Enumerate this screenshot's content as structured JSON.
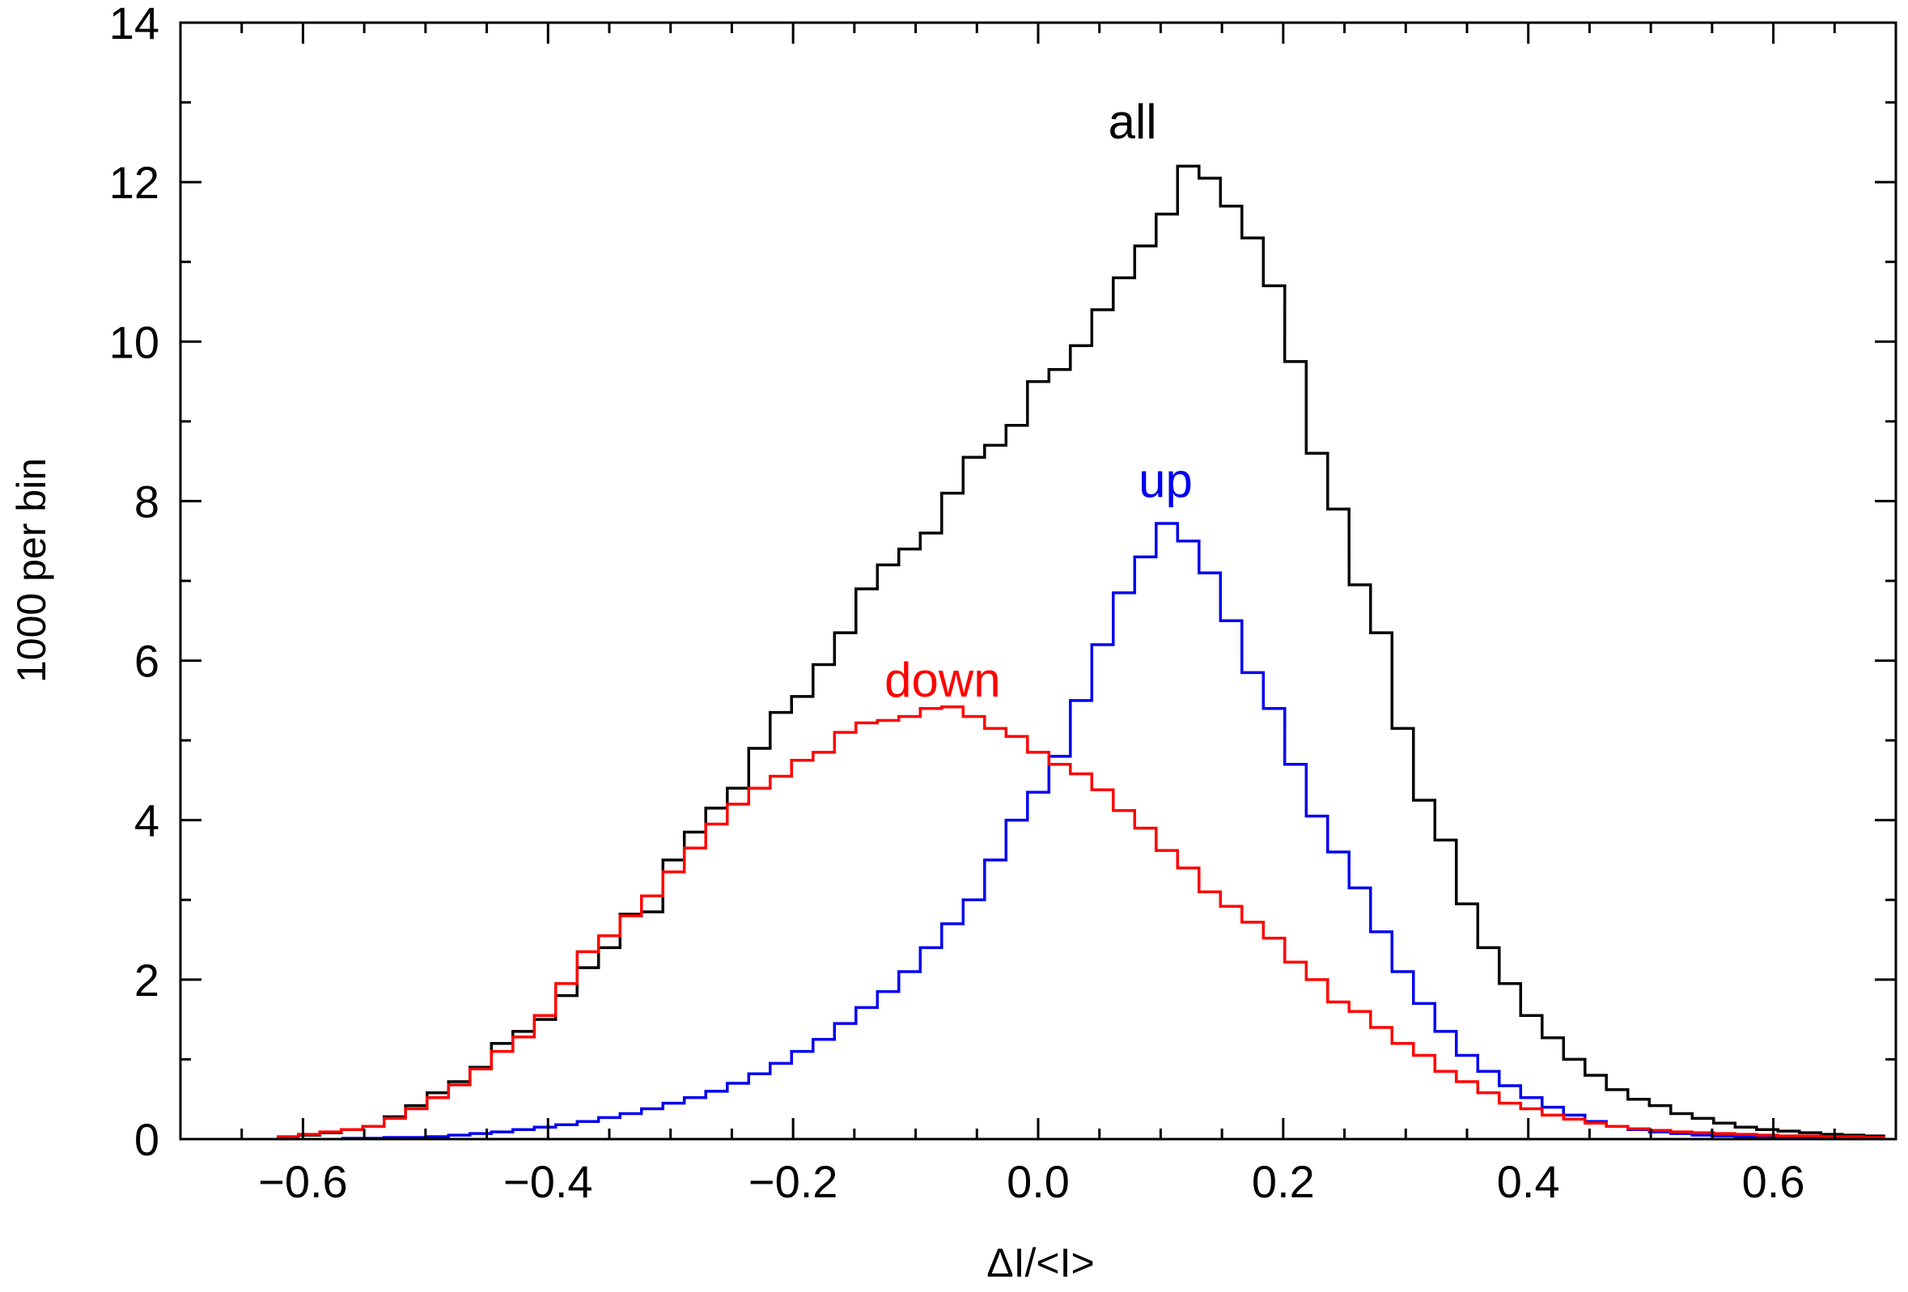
{
  "chart_data": {
    "type": "line",
    "title": "",
    "xlabel": "ΔI/<I>",
    "ylabel": "1000 per bin",
    "xlim": [
      -0.7,
      0.7
    ],
    "ylim": [
      0,
      14
    ],
    "x_ticks": [
      -0.6,
      -0.4,
      -0.2,
      0.0,
      0.2,
      0.4,
      0.6
    ],
    "x_tick_labels": [
      "−0.6",
      "−0.4",
      "−0.2",
      "0.0",
      "0.2",
      "0.4",
      "0.6"
    ],
    "y_ticks": [
      0,
      2,
      4,
      6,
      8,
      10,
      12,
      14
    ],
    "y_tick_labels": [
      "0",
      "2",
      "4",
      "6",
      "8",
      "10",
      "12",
      "14"
    ],
    "grid": false,
    "bin_width": 0.0175,
    "series": [
      {
        "name": "all",
        "color": "#000000",
        "label_anchor": [
          0.077,
          12.55
        ],
        "x": [
          -0.6125,
          -0.595,
          -0.5775,
          -0.56,
          -0.5425,
          -0.525,
          -0.5075,
          -0.49,
          -0.4725,
          -0.455,
          -0.4375,
          -0.42,
          -0.4025,
          -0.385,
          -0.3675,
          -0.35,
          -0.3325,
          -0.315,
          -0.2975,
          -0.28,
          -0.2625,
          -0.245,
          -0.2275,
          -0.21,
          -0.1925,
          -0.175,
          -0.1575,
          -0.14,
          -0.1225,
          -0.105,
          -0.0875,
          -0.07,
          -0.0525,
          -0.035,
          -0.0175,
          0.0,
          0.0175,
          0.035,
          0.0525,
          0.07,
          0.0875,
          0.105,
          0.1225,
          0.14,
          0.1575,
          0.175,
          0.1925,
          0.21,
          0.2275,
          0.245,
          0.2625,
          0.28,
          0.2975,
          0.315,
          0.3325,
          0.35,
          0.3675,
          0.385,
          0.4025,
          0.42,
          0.4375,
          0.455,
          0.4725,
          0.49,
          0.5075,
          0.525,
          0.5425,
          0.56,
          0.5775,
          0.595,
          0.6125,
          0.63,
          0.6475,
          0.665,
          0.6825
        ],
        "y": [
          0.02,
          0.05,
          0.08,
          0.12,
          0.16,
          0.28,
          0.42,
          0.58,
          0.72,
          0.9,
          1.2,
          1.35,
          1.5,
          1.8,
          2.15,
          2.4,
          2.82,
          2.85,
          3.5,
          3.85,
          4.15,
          4.4,
          4.9,
          5.35,
          5.55,
          5.95,
          6.35,
          6.9,
          7.2,
          7.4,
          7.6,
          8.1,
          8.55,
          8.7,
          8.95,
          9.5,
          9.65,
          9.95,
          10.4,
          10.8,
          11.2,
          11.6,
          12.2,
          12.05,
          11.7,
          11.3,
          10.7,
          9.75,
          8.6,
          7.9,
          6.95,
          6.35,
          5.15,
          4.25,
          3.75,
          2.95,
          2.4,
          1.95,
          1.55,
          1.27,
          1.0,
          0.8,
          0.62,
          0.5,
          0.42,
          0.32,
          0.26,
          0.2,
          0.15,
          0.12,
          0.1,
          0.08,
          0.06,
          0.05,
          0.04
        ]
      },
      {
        "name": "up",
        "color": "#0000ee",
        "label_anchor": [
          0.104,
          8.05
        ],
        "x": [
          -0.56,
          -0.5425,
          -0.525,
          -0.5075,
          -0.49,
          -0.4725,
          -0.455,
          -0.4375,
          -0.42,
          -0.4025,
          -0.385,
          -0.3675,
          -0.35,
          -0.3325,
          -0.315,
          -0.2975,
          -0.28,
          -0.2625,
          -0.245,
          -0.2275,
          -0.21,
          -0.1925,
          -0.175,
          -0.1575,
          -0.14,
          -0.1225,
          -0.105,
          -0.0875,
          -0.07,
          -0.0525,
          -0.035,
          -0.0175,
          0.0,
          0.0175,
          0.035,
          0.0525,
          0.07,
          0.0875,
          0.105,
          0.1225,
          0.14,
          0.1575,
          0.175,
          0.1925,
          0.21,
          0.2275,
          0.245,
          0.2625,
          0.28,
          0.2975,
          0.315,
          0.3325,
          0.35,
          0.3675,
          0.385,
          0.4025,
          0.42,
          0.4375,
          0.455,
          0.4725,
          0.49,
          0.5075,
          0.525,
          0.5425,
          0.56,
          0.5775,
          0.595,
          0.6125,
          0.63,
          0.6475,
          0.665,
          0.6825
        ],
        "y": [
          0.01,
          0.01,
          0.02,
          0.02,
          0.03,
          0.05,
          0.07,
          0.09,
          0.12,
          0.15,
          0.18,
          0.22,
          0.27,
          0.32,
          0.38,
          0.45,
          0.52,
          0.6,
          0.7,
          0.82,
          0.95,
          1.1,
          1.25,
          1.45,
          1.65,
          1.85,
          2.1,
          2.4,
          2.7,
          3.0,
          3.5,
          4.0,
          4.35,
          4.8,
          5.5,
          6.2,
          6.85,
          7.3,
          7.72,
          7.5,
          7.1,
          6.5,
          5.85,
          5.4,
          4.7,
          4.05,
          3.6,
          3.15,
          2.6,
          2.1,
          1.7,
          1.35,
          1.05,
          0.85,
          0.67,
          0.52,
          0.4,
          0.3,
          0.22,
          0.16,
          0.12,
          0.09,
          0.07,
          0.05,
          0.04,
          0.03,
          0.03,
          0.02,
          0.02,
          0.01,
          0.01,
          0.01
        ]
      },
      {
        "name": "down",
        "color": "#ff0000",
        "label_anchor": [
          -0.078,
          5.55
        ],
        "x": [
          -0.6125,
          -0.595,
          -0.5775,
          -0.56,
          -0.5425,
          -0.525,
          -0.5075,
          -0.49,
          -0.4725,
          -0.455,
          -0.4375,
          -0.42,
          -0.4025,
          -0.385,
          -0.3675,
          -0.35,
          -0.3325,
          -0.315,
          -0.2975,
          -0.28,
          -0.2625,
          -0.245,
          -0.2275,
          -0.21,
          -0.1925,
          -0.175,
          -0.1575,
          -0.14,
          -0.1225,
          -0.105,
          -0.0875,
          -0.07,
          -0.0525,
          -0.035,
          -0.0175,
          0.0,
          0.0175,
          0.035,
          0.0525,
          0.07,
          0.0875,
          0.105,
          0.1225,
          0.14,
          0.1575,
          0.175,
          0.1925,
          0.21,
          0.2275,
          0.245,
          0.2625,
          0.28,
          0.2975,
          0.315,
          0.3325,
          0.35,
          0.3675,
          0.385,
          0.4025,
          0.42,
          0.4375,
          0.455,
          0.4725,
          0.49,
          0.5075,
          0.525,
          0.5425,
          0.56,
          0.5775,
          0.595,
          0.6125,
          0.63,
          0.6475,
          0.665,
          0.6825
        ],
        "y": [
          0.03,
          0.06,
          0.09,
          0.12,
          0.16,
          0.26,
          0.38,
          0.52,
          0.68,
          0.88,
          1.1,
          1.28,
          1.55,
          1.95,
          2.35,
          2.55,
          2.8,
          3.05,
          3.35,
          3.65,
          3.95,
          4.2,
          4.4,
          4.55,
          4.75,
          4.85,
          5.1,
          5.22,
          5.25,
          5.3,
          5.4,
          5.42,
          5.3,
          5.15,
          5.05,
          4.85,
          4.7,
          4.58,
          4.38,
          4.12,
          3.9,
          3.62,
          3.4,
          3.1,
          2.92,
          2.72,
          2.52,
          2.22,
          2.0,
          1.72,
          1.6,
          1.4,
          1.2,
          1.05,
          0.85,
          0.72,
          0.58,
          0.45,
          0.38,
          0.3,
          0.25,
          0.2,
          0.16,
          0.13,
          0.11,
          0.09,
          0.08,
          0.07,
          0.06,
          0.05,
          0.04,
          0.04,
          0.03,
          0.03,
          0.02
        ]
      }
    ]
  }
}
